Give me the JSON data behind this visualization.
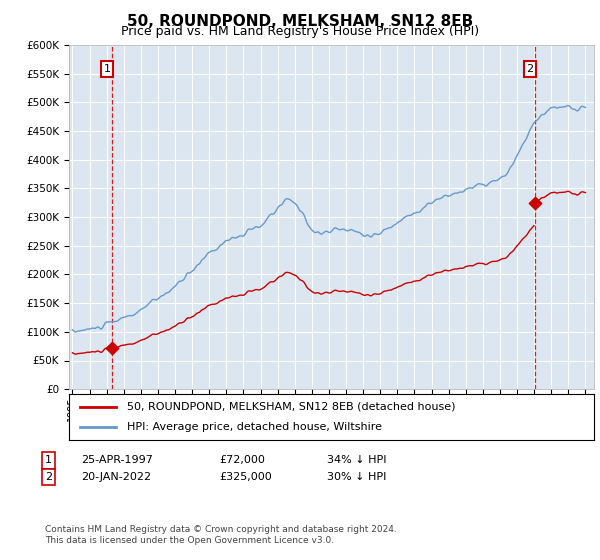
{
  "title": "50, ROUNDPOND, MELKSHAM, SN12 8EB",
  "subtitle": "Price paid vs. HM Land Registry's House Price Index (HPI)",
  "hpi_color": "#6699cc",
  "price_color": "#cc0000",
  "background_color": "#dce6f1",
  "ylim": [
    0,
    600000
  ],
  "yticks": [
    0,
    50000,
    100000,
    150000,
    200000,
    250000,
    300000,
    350000,
    400000,
    450000,
    500000,
    550000,
    600000
  ],
  "sale1_date": 1997.32,
  "sale1_price": 72000,
  "sale1_label": "1",
  "sale2_date": 2022.05,
  "sale2_price": 325000,
  "sale2_label": "2",
  "legend_line1": "50, ROUNDPOND, MELKSHAM, SN12 8EB (detached house)",
  "legend_line2": "HPI: Average price, detached house, Wiltshire",
  "footnote": "Contains HM Land Registry data © Crown copyright and database right 2024.\nThis data is licensed under the Open Government Licence v3.0."
}
